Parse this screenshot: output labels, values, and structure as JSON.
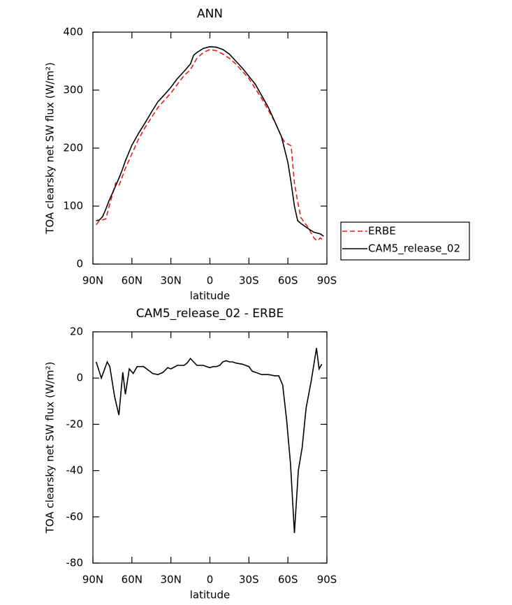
{
  "chart_data": [
    {
      "type": "line",
      "title": "ANN",
      "xlabel": "latitude",
      "ylabel": "TOA clearsky net SW flux (W/m²)",
      "xlim": [
        90,
        -90
      ],
      "xticks": [
        {
          "value": 90,
          "label": "90N"
        },
        {
          "value": 60,
          "label": "60N"
        },
        {
          "value": 30,
          "label": "30N"
        },
        0,
        {
          "value": -30,
          "label": "30S"
        },
        {
          "value": -60,
          "label": "60S"
        },
        {
          "value": -90,
          "label": "90S"
        }
      ],
      "ylim": [
        0,
        400
      ],
      "yticks": [
        0,
        100,
        200,
        300,
        400
      ],
      "legend": "right",
      "series": [
        {
          "name": "ERBE",
          "color": "#e8191b",
          "dashed": true,
          "x": [
            87.5,
            85,
            80,
            77.5,
            72.5,
            70,
            65,
            60,
            55,
            50,
            40,
            30,
            20,
            15,
            10,
            5,
            0,
            -5,
            -10,
            -15,
            -20,
            -30,
            -40,
            -50,
            -55,
            -57.5,
            -60,
            -62.5,
            -65,
            -67.5,
            -70,
            -75,
            -80,
            -82.5,
            -85,
            -87.5
          ],
          "values": [
            68,
            75,
            78,
            100,
            140,
            135,
            165,
            190,
            215,
            235,
            270,
            295,
            325,
            335,
            355,
            365,
            370,
            368,
            362,
            355,
            345,
            320,
            285,
            245,
            220,
            210,
            207,
            204,
            140,
            108,
            80,
            65,
            45,
            40,
            45,
            40
          ]
        },
        {
          "name": "CAM5_release_02",
          "color": "#000000",
          "dashed": false,
          "x": [
            87.5,
            85,
            82.5,
            80,
            77.5,
            75,
            72.5,
            70,
            67.5,
            65,
            60,
            55,
            50,
            45,
            40,
            35,
            30,
            25,
            20,
            15,
            12.5,
            10,
            5,
            0,
            -5,
            -10,
            -15,
            -20,
            -25,
            -30,
            -35,
            -40,
            -45,
            -50,
            -55,
            -60,
            -62.5,
            -65,
            -67.5,
            -70,
            -75,
            -80,
            -85,
            -87.5
          ],
          "values": [
            75,
            76,
            82,
            95,
            110,
            122,
            135,
            148,
            162,
            178,
            205,
            225,
            243,
            262,
            280,
            292,
            305,
            320,
            332,
            345,
            360,
            365,
            372,
            375,
            374,
            370,
            362,
            350,
            338,
            324,
            310,
            290,
            270,
            245,
            220,
            175,
            140,
            100,
            75,
            70,
            62,
            55,
            52,
            48
          ]
        }
      ]
    },
    {
      "type": "line",
      "title": "CAM5_release_02 - ERBE",
      "xlabel": "latitude",
      "ylabel": "TOA clearsky net SW flux (W/m²)",
      "xlim": [
        90,
        -90
      ],
      "xticks": [
        {
          "value": 90,
          "label": "90N"
        },
        {
          "value": 60,
          "label": "60N"
        },
        {
          "value": 30,
          "label": "30N"
        },
        0,
        {
          "value": -30,
          "label": "30S"
        },
        {
          "value": -60,
          "label": "60S"
        },
        {
          "value": -90,
          "label": "90S"
        }
      ],
      "ylim": [
        -80,
        20
      ],
      "yticks": [
        -80,
        -60,
        -40,
        -20,
        0,
        20
      ],
      "series": [
        {
          "color": "#000000",
          "x": [
            87.5,
            83.5,
            79,
            77,
            73.3,
            70,
            67,
            65,
            62,
            59,
            56,
            51,
            47.5,
            44,
            40,
            36,
            32.5,
            30,
            25,
            20,
            17.5,
            15,
            12.5,
            10,
            7.5,
            5,
            2.5,
            0,
            -2.5,
            -5,
            -7.5,
            -10,
            -12.5,
            -15,
            -17.5,
            -20,
            -25,
            -30,
            -32.5,
            -35,
            -40,
            -45,
            -50,
            -53,
            -56,
            -59,
            -62,
            -65,
            -68,
            -71,
            -74,
            -78,
            -82,
            -84,
            -86
          ],
          "values": [
            7,
            0,
            7,
            5,
            -8,
            -16,
            2.5,
            -7,
            4,
            2,
            5,
            5,
            3.5,
            2,
            1.5,
            2.5,
            4.5,
            4,
            5.5,
            5.5,
            6.5,
            8.5,
            7,
            5.5,
            5.5,
            5.5,
            5,
            4.5,
            5,
            5,
            5.5,
            7,
            7.5,
            7,
            7,
            6.5,
            6,
            5,
            3,
            2.5,
            1.5,
            1.5,
            1,
            1,
            -3,
            -18,
            -37,
            -67,
            -40,
            -30,
            -13,
            -1,
            13,
            4,
            6
          ]
        }
      ]
    }
  ]
}
